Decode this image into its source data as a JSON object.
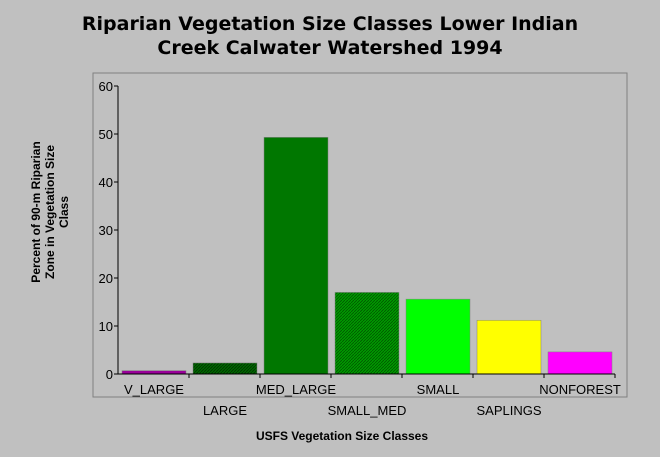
{
  "chart_data": {
    "type": "bar",
    "title_lines": [
      "Riparian Vegetation Size Classes Lower Indian",
      "Creek Calwater Watershed 1994"
    ],
    "categories": [
      "V_LARGE",
      "LARGE",
      "MED_LARGE",
      "SMALL_MED",
      "SMALL",
      "SAPLINGS",
      "NONFOREST"
    ],
    "values": [
      0.7,
      2.3,
      49.3,
      17.0,
      15.6,
      11.2,
      4.6
    ],
    "colors": [
      "#990099",
      "#006600",
      "#007700",
      "#009900",
      "#00ff00",
      "#ffff00",
      "#ff00ff"
    ],
    "hatched": [
      false,
      true,
      false,
      true,
      false,
      false,
      false
    ],
    "xlabel": "USFS Vegetation Size Classes",
    "ylabel_lines": [
      "Percent of 90-m Riparian",
      "Zone in Vegetation Size",
      "Class"
    ],
    "ylim": [
      0,
      60
    ],
    "yticks": [
      0,
      10,
      20,
      30,
      40,
      50,
      60
    ],
    "grid": false,
    "legend": "none"
  }
}
